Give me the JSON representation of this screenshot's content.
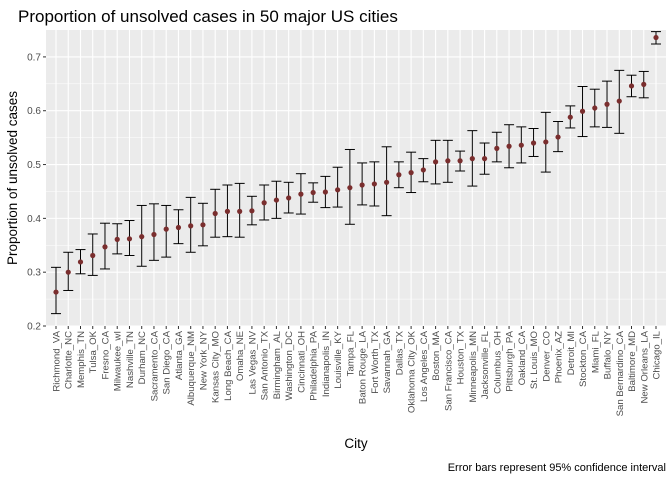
{
  "chart_data": {
    "type": "scatter",
    "title": "Proportion of unsolved cases in 50 major US cities",
    "xlabel": "City",
    "ylabel": "Proportion of unsolved cases",
    "caption": "Error bars represent 95% confidence interval",
    "ylim": [
      0.2,
      0.75
    ],
    "yticks": [
      0.2,
      0.3,
      0.4,
      0.5,
      0.6,
      0.7
    ],
    "ytick_labels": [
      "0.2",
      "0.3",
      "0.4",
      "0.5",
      "0.6",
      "0.7"
    ],
    "grid": true,
    "point_color": "#7a2e2e",
    "panel_color": "#ebebeb",
    "categories": [
      "Richmond_VA",
      "Charlotte_NC",
      "Memphis_TN",
      "Tulsa_OK",
      "Fresno_CA",
      "Milwaukee_wI",
      "Nashville_TN",
      "Durham_NC",
      "Sacramento_CA",
      "San Diego_CA",
      "Atlanta_GA",
      "Albuquerque_NM",
      "New York_NY",
      "Kansas City_MO",
      "Long Beach_CA",
      "Omaha_NE",
      "Las Vegas_NV",
      "San Antonio_TX",
      "Birmingham_AL",
      "Washington_DC",
      "Cincinnati_OH",
      "Philadelphia_PA",
      "Indianapolis_IN",
      "Louisville_KY",
      "Tampa_FL",
      "Baton Rouge_LA",
      "Fort Worth_TX",
      "Savannah_GA",
      "Dallas_TX",
      "Oklahoma City_OK",
      "Los Angeles_CA",
      "Boston_MA",
      "San Francisco_CA",
      "Houston_TX",
      "Minneapolis_MN",
      "Jacksonville_FL",
      "Columbus_OH",
      "Pittsburgh_PA",
      "Oakland_CA",
      "St. Louis_MO",
      "Denver_CO",
      "Phoenix_AZ",
      "Detroit_MI",
      "Stockton_CA",
      "Miami_FL",
      "Buffalo_NY",
      "San Bernardino_CA",
      "Baltimore_MD",
      "New Orleans_LA",
      "Chicago_IL"
    ],
    "series": [
      {
        "values": [
          0.263,
          0.3,
          0.319,
          0.331,
          0.347,
          0.361,
          0.362,
          0.366,
          0.37,
          0.38,
          0.383,
          0.386,
          0.388,
          0.409,
          0.413,
          0.413,
          0.414,
          0.429,
          0.434,
          0.438,
          0.445,
          0.448,
          0.449,
          0.453,
          0.457,
          0.462,
          0.464,
          0.467,
          0.481,
          0.485,
          0.49,
          0.505,
          0.507,
          0.507,
          0.511,
          0.511,
          0.53,
          0.534,
          0.536,
          0.54,
          0.542,
          0.551,
          0.588,
          0.599,
          0.605,
          0.612,
          0.618,
          0.646,
          0.649,
          0.736
        ],
        "lower": [
          0.223,
          0.266,
          0.297,
          0.294,
          0.306,
          0.334,
          0.331,
          0.311,
          0.322,
          0.328,
          0.353,
          0.337,
          0.349,
          0.365,
          0.366,
          0.365,
          0.388,
          0.397,
          0.4,
          0.41,
          0.408,
          0.43,
          0.42,
          0.421,
          0.389,
          0.425,
          0.423,
          0.405,
          0.457,
          0.448,
          0.468,
          0.464,
          0.467,
          0.488,
          0.46,
          0.482,
          0.505,
          0.494,
          0.503,
          0.515,
          0.486,
          0.524,
          0.568,
          0.552,
          0.57,
          0.569,
          0.558,
          0.626,
          0.624,
          0.724
        ],
        "upper": [
          0.309,
          0.337,
          0.342,
          0.371,
          0.391,
          0.39,
          0.396,
          0.424,
          0.427,
          0.424,
          0.416,
          0.439,
          0.428,
          0.454,
          0.462,
          0.465,
          0.441,
          0.462,
          0.469,
          0.467,
          0.483,
          0.466,
          0.478,
          0.495,
          0.528,
          0.503,
          0.505,
          0.533,
          0.505,
          0.523,
          0.511,
          0.545,
          0.545,
          0.525,
          0.563,
          0.54,
          0.56,
          0.574,
          0.57,
          0.567,
          0.597,
          0.58,
          0.609,
          0.645,
          0.64,
          0.655,
          0.675,
          0.666,
          0.673,
          0.747
        ]
      }
    ]
  }
}
